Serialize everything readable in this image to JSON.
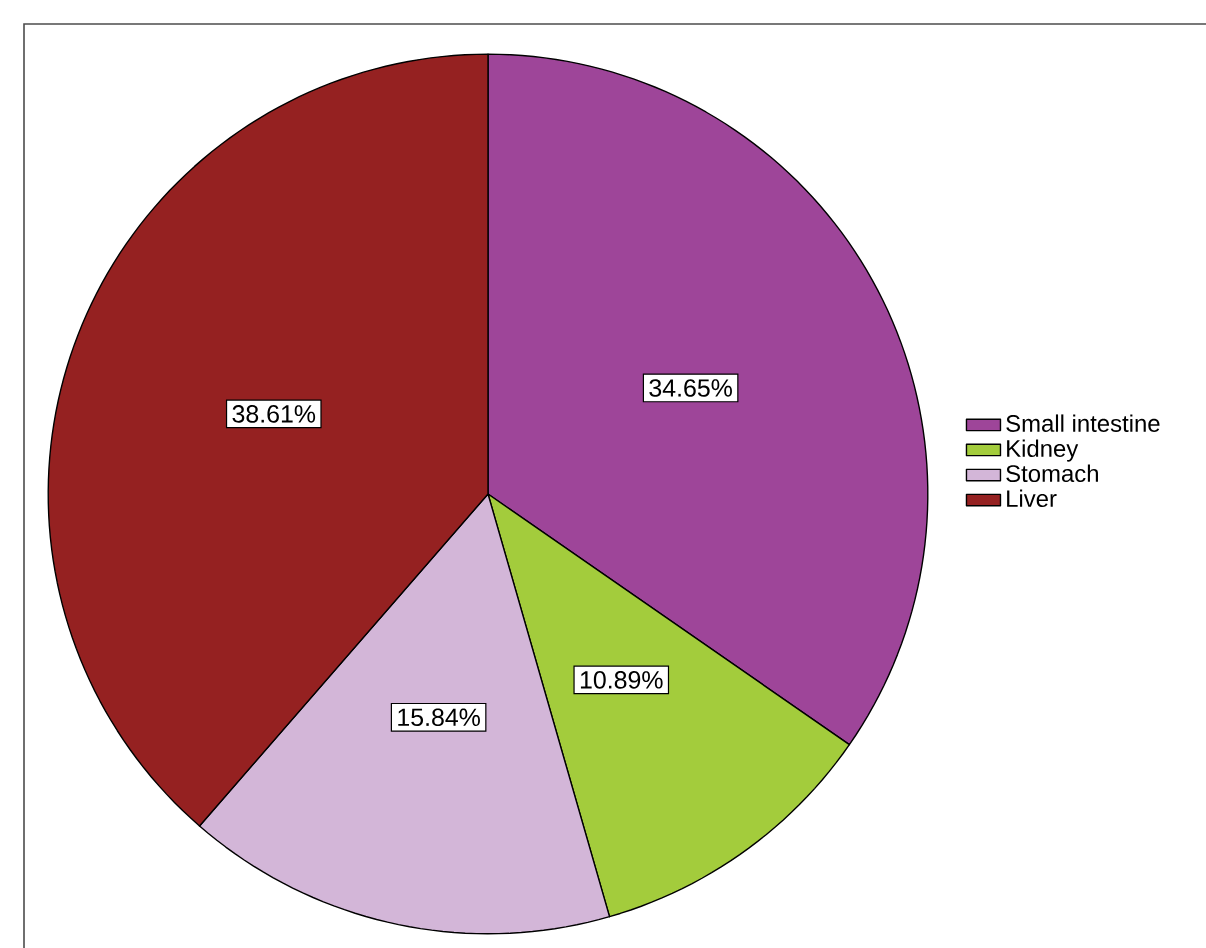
{
  "chart_data": {
    "type": "pie",
    "categories": [
      "Small intestine",
      "Kidney",
      "Stomach",
      "Liver"
    ],
    "values": [
      34.65,
      10.89,
      15.84,
      38.61
    ],
    "value_labels": [
      "34.65%",
      "10.89%",
      "15.84%",
      "38.61%"
    ],
    "colors": [
      "#9e4599",
      "#a3cc3c",
      "#d3b6d8",
      "#952121"
    ],
    "legend": "right"
  }
}
